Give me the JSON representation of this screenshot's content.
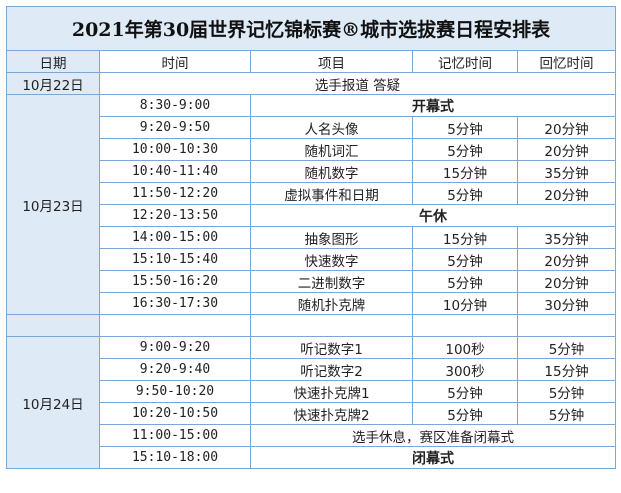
{
  "title": "2021年第30届世界记忆锦标赛®城市选拔赛日程安排表",
  "headers": [
    "日期",
    "时间",
    "项目",
    "记忆时间",
    "回忆时间"
  ],
  "day1": {
    "date": "10月22日",
    "note": "选手报道 答疑"
  },
  "day2": {
    "date": "10月23日",
    "rows": [
      {
        "time": "8:30-9:00",
        "event": "开幕式"
      },
      {
        "time": "9:20-9:50",
        "event": "人名头像",
        "memory": "5分钟",
        "recall": "20分钟"
      },
      {
        "time": "10:00-10:30",
        "event": "随机词汇",
        "memory": "5分钟",
        "recall": "20分钟"
      },
      {
        "time": "10:40-11:40",
        "event": "随机数字",
        "memory": "15分钟",
        "recall": "35分钟"
      },
      {
        "time": "11:50-12:20",
        "event": "虚拟事件和日期",
        "memory": "5分钟",
        "recall": "20分钟"
      },
      {
        "time": "12:20-13:50",
        "event": "午休"
      },
      {
        "time": "14:00-15:00",
        "event": "抽象图形",
        "memory": "15分钟",
        "recall": "35分钟"
      },
      {
        "time": "15:10-15:40",
        "event": "快速数字",
        "memory": "5分钟",
        "recall": "20分钟"
      },
      {
        "time": "15:50-16:20",
        "event": "二进制数字",
        "memory": "5分钟",
        "recall": "20分钟"
      },
      {
        "time": "16:30-17:30",
        "event": "随机扑克牌",
        "memory": "10分钟",
        "recall": "30分钟"
      }
    ]
  },
  "day3": {
    "date": "10月24日",
    "rows": [
      {
        "time": "9:00-9:20",
        "event": "听记数字1",
        "memory": "100秒",
        "recall": "5分钟"
      },
      {
        "time": "9:20-9:40",
        "event": "听记数字2",
        "memory": "300秒",
        "recall": "15分钟"
      },
      {
        "time": "9:50-10:20",
        "event": "快速扑克牌1",
        "memory": "5分钟",
        "recall": "5分钟"
      },
      {
        "time": "10:20-10:50",
        "event": "快速扑克牌2",
        "memory": "5分钟",
        "recall": "5分钟"
      },
      {
        "time": "11:00-15:00",
        "event": "选手休息，赛区准备闭幕式"
      },
      {
        "time": "15:10-18:00",
        "event": "闭幕式",
        "bold": true
      }
    ]
  }
}
